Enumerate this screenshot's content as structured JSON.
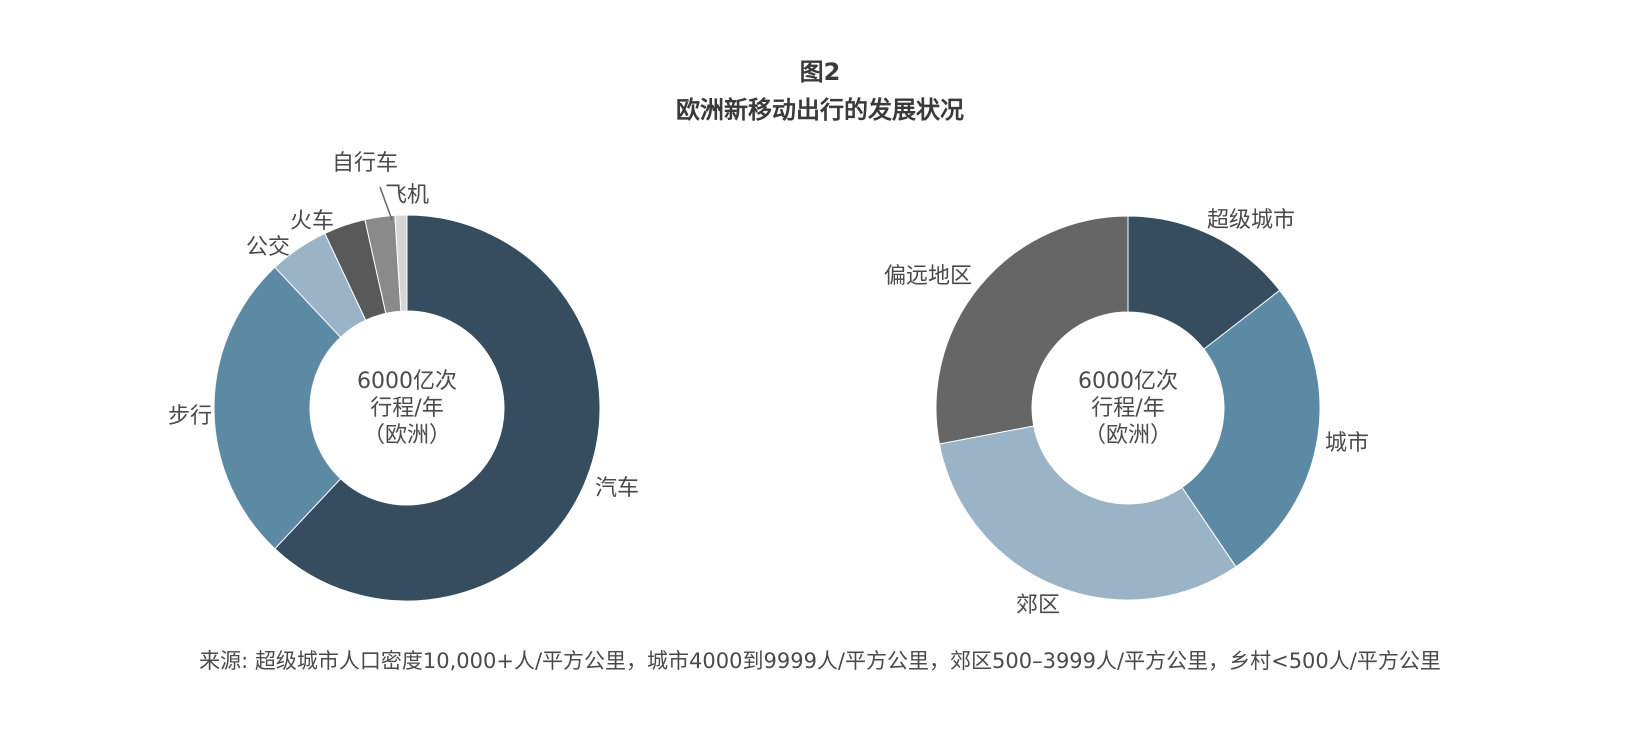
{
  "figure": {
    "number": "图2",
    "title": "欧洲新移动出行的发展状况"
  },
  "chart_data": [
    {
      "type": "pie",
      "variant": "donut",
      "center_text": [
        "6000亿次",
        "行程/年",
        "（欧洲）"
      ],
      "categories": [
        "汽车",
        "步行",
        "公交",
        "火车",
        "自行车",
        "飞机"
      ],
      "values": [
        62,
        26,
        5,
        3.5,
        2.5,
        1
      ],
      "colors": [
        "#354d5e",
        "#5c89a4",
        "#9ab3c6",
        "#595959",
        "#8a8a8a",
        "#d6d6d6"
      ]
    },
    {
      "type": "pie",
      "variant": "donut",
      "center_text": [
        "6000亿次",
        "行程/年",
        "（欧洲）"
      ],
      "categories": [
        "超级城市",
        "城市",
        "郊区",
        "偏远地区"
      ],
      "values": [
        14.5,
        26,
        31.5,
        28
      ],
      "colors": [
        "#354d5e",
        "#5c89a4",
        "#9ab3c6",
        "#666666"
      ]
    }
  ],
  "source": "来源: 超级城市人口密度10,000+人/平方公里，城市4000到9999人/平方公里，郊区500–3999人/平方公里，乡村<500人/平方公里"
}
